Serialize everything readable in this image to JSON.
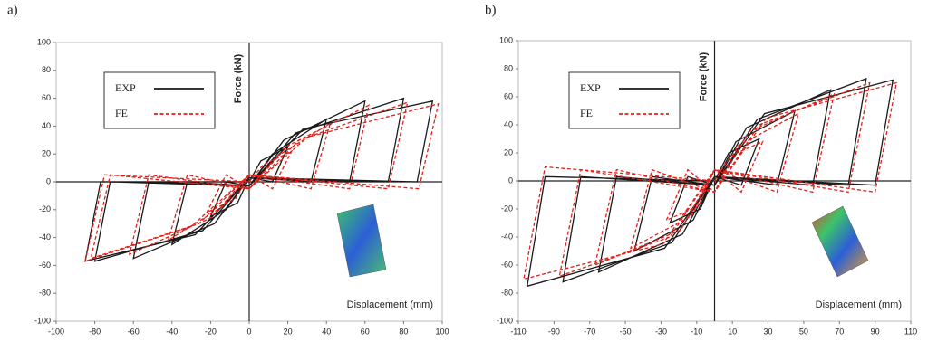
{
  "chart_data": [
    {
      "type": "line",
      "title": "a)",
      "xlabel": "Displacement (mm)",
      "ylabel": "Force (kN)",
      "xlim": [
        -100,
        100
      ],
      "xticks": [
        -100,
        -80,
        -60,
        -40,
        -20,
        0,
        20,
        40,
        60,
        80,
        100
      ],
      "ylim": [
        -100,
        100
      ],
      "yticks": [
        -100,
        -80,
        -60,
        -40,
        -20,
        0,
        20,
        40,
        60,
        80,
        100
      ],
      "series": [
        {
          "name": "EXP",
          "color": "#1a1a1a",
          "line_style": "solid",
          "x": [
            0,
            6,
            20,
            12,
            0,
            -6,
            -20,
            -12,
            0,
            12,
            40,
            32,
            0,
            -12,
            -40,
            -32,
            0,
            18,
            60,
            52,
            0,
            -18,
            -60,
            -52,
            0,
            24,
            80,
            72,
            0,
            -24,
            -80,
            -72,
            0,
            28,
            95,
            87,
            0,
            -28,
            -85,
            -77,
            0
          ],
          "y": [
            0,
            15,
            25,
            0,
            3,
            -15,
            -25,
            0,
            -3,
            20,
            45,
            0,
            3,
            -20,
            -45,
            0,
            -3,
            30,
            58,
            0,
            3,
            -30,
            -55,
            0,
            -3,
            35,
            60,
            0,
            3,
            -35,
            -57,
            0,
            -3,
            38,
            58,
            0,
            3,
            -38,
            -57,
            0,
            0
          ]
        },
        {
          "name": "FE",
          "color": "#e0201b",
          "line_style": "dashed",
          "x": [
            0,
            7,
            22,
            12,
            0,
            -7,
            -22,
            -12,
            0,
            14,
            42,
            32,
            0,
            -14,
            -42,
            -32,
            0,
            20,
            62,
            52,
            0,
            -20,
            -62,
            -52,
            0,
            26,
            82,
            72,
            0,
            -26,
            -82,
            -72,
            0,
            30,
            98,
            88,
            0,
            -30,
            -85,
            -75,
            0
          ],
          "y": [
            0,
            12,
            22,
            -5,
            5,
            -12,
            -22,
            5,
            -5,
            18,
            42,
            -5,
            5,
            -18,
            -42,
            5,
            -5,
            26,
            55,
            -5,
            5,
            -26,
            -52,
            5,
            -5,
            30,
            57,
            -5,
            5,
            -30,
            -55,
            5,
            -5,
            32,
            56,
            -5,
            5,
            -32,
            -57,
            5,
            0
          ]
        }
      ]
    },
    {
      "type": "line",
      "title": "b)",
      "xlabel": "Displacement (mm)",
      "ylabel": "Force (kN)",
      "xlim": [
        -110,
        110
      ],
      "xticks": [
        -110,
        -90,
        -70,
        -50,
        -30,
        -10,
        10,
        30,
        50,
        70,
        90,
        110
      ],
      "ylim": [
        -100,
        100
      ],
      "yticks": [
        -100,
        -80,
        -60,
        -40,
        -20,
        0,
        20,
        40,
        60,
        80,
        100
      ],
      "series": [
        {
          "name": "EXP",
          "color": "#1a1a1a",
          "line_style": "solid",
          "x": [
            0,
            8,
            25,
            15,
            0,
            -8,
            -25,
            -15,
            0,
            12,
            45,
            35,
            0,
            -12,
            -45,
            -35,
            0,
            18,
            65,
            55,
            0,
            -18,
            -65,
            -55,
            0,
            24,
            85,
            75,
            0,
            -24,
            -85,
            -75,
            0,
            28,
            100,
            90,
            0,
            -28,
            -105,
            -95,
            0
          ],
          "y": [
            0,
            20,
            30,
            -3,
            3,
            -20,
            -30,
            3,
            -3,
            28,
            50,
            -3,
            3,
            -28,
            -50,
            3,
            -3,
            38,
            65,
            -3,
            3,
            -38,
            -65,
            3,
            -3,
            44,
            73,
            -3,
            3,
            -44,
            -72,
            3,
            -3,
            48,
            72,
            -3,
            3,
            -48,
            -75,
            3,
            0
          ]
        },
        {
          "name": "FE",
          "color": "#e0201b",
          "line_style": "dashed",
          "x": [
            0,
            9,
            27,
            15,
            0,
            -9,
            -27,
            -15,
            0,
            13,
            47,
            35,
            0,
            -13,
            -47,
            -35,
            0,
            19,
            67,
            55,
            0,
            -19,
            -67,
            -55,
            0,
            25,
            87,
            75,
            0,
            -25,
            -87,
            -75,
            0,
            29,
            102,
            90,
            0,
            -29,
            -107,
            -95,
            0
          ],
          "y": [
            0,
            18,
            28,
            -8,
            8,
            -18,
            -28,
            8,
            -8,
            25,
            48,
            -8,
            8,
            -25,
            -48,
            8,
            -8,
            35,
            62,
            -8,
            8,
            -35,
            -60,
            8,
            -8,
            40,
            70,
            -8,
            8,
            -40,
            -68,
            8,
            -8,
            45,
            70,
            -8,
            8,
            -45,
            -70,
            10,
            0
          ]
        }
      ]
    }
  ]
}
